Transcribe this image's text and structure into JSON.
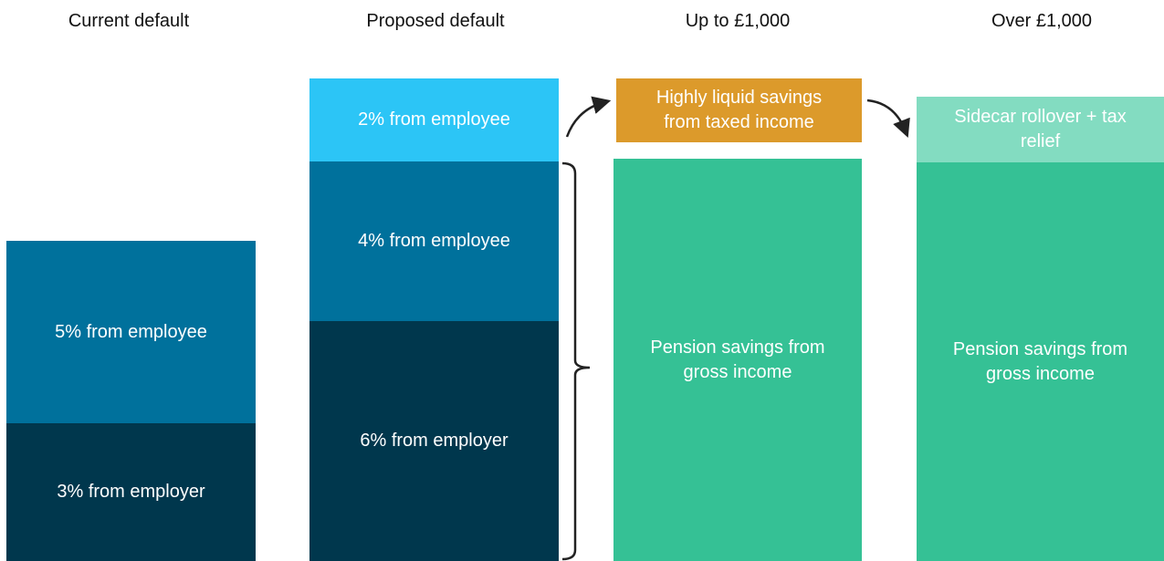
{
  "columns": [
    {
      "title": "Current default",
      "blocks": [
        {
          "lines": [
            "5% from employee"
          ]
        },
        {
          "lines": [
            "3% from employer"
          ]
        }
      ]
    },
    {
      "title": "Proposed default",
      "blocks": [
        {
          "lines": [
            "2% from employee"
          ]
        },
        {
          "lines": [
            "4% from employee"
          ]
        },
        {
          "lines": [
            "6% from employer"
          ]
        }
      ]
    },
    {
      "title": "Up to £1,000",
      "blocks": [
        {
          "lines": [
            "Highly liquid savings",
            "from taxed income"
          ]
        },
        {
          "lines": [
            "Pension savings from",
            "gross income"
          ]
        }
      ]
    },
    {
      "title": "Over £1,000",
      "blocks": [
        {
          "lines": [
            "Sidecar rollover + tax",
            "relief"
          ]
        },
        {
          "lines": [
            "Pension savings from",
            "gross income"
          ]
        }
      ]
    }
  ]
}
